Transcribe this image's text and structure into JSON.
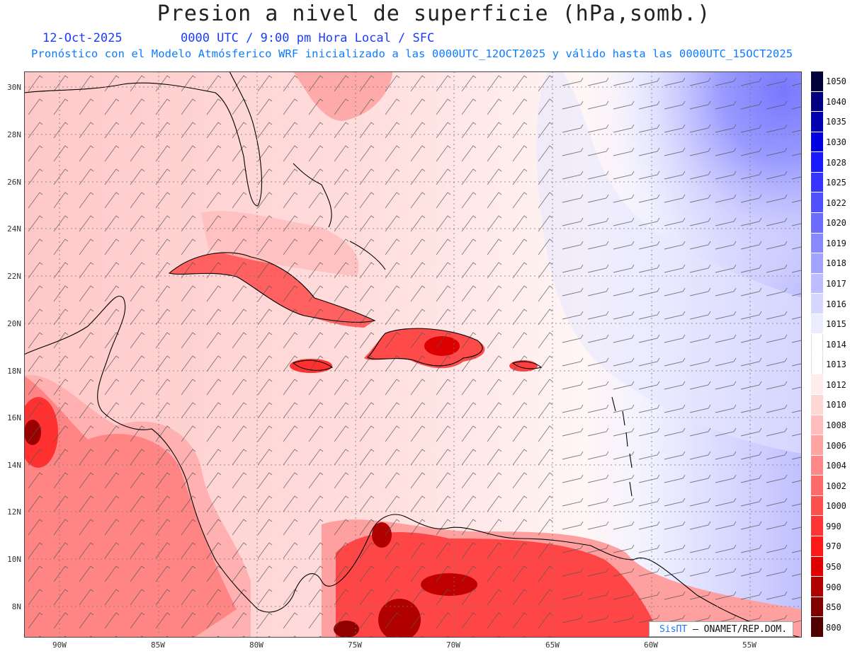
{
  "title": "Presion a nivel de superficie (hPa,somb.)",
  "date": "12-Oct-2025",
  "time_line": "0000 UTC / 9:00 pm Hora Local / SFC",
  "forecast_line": "Pronóstico con el Modelo Atmósferico WRF inicializado a las 0000UTC_12OCT2025 y válido hasta las  0000UTC_15OCT2025",
  "lat_labels": [
    "30N",
    "28N",
    "26N",
    "24N",
    "22N",
    "20N",
    "18N",
    "16N",
    "14N",
    "12N",
    "10N",
    "8N"
  ],
  "lon_labels": [
    "90W",
    "85W",
    "80W",
    "75W",
    "70W",
    "65W",
    "60W",
    "55W"
  ],
  "colorbar": {
    "levels": [
      "1050",
      "1040",
      "1035",
      "1030",
      "1028",
      "1025",
      "1022",
      "1020",
      "1019",
      "1018",
      "1017",
      "1016",
      "1015",
      "1014",
      "1013",
      "1012",
      "1010",
      "1008",
      "1006",
      "1004",
      "1002",
      "1000",
      "990",
      "970",
      "950",
      "900",
      "850",
      "800"
    ],
    "colors": [
      "#00003a",
      "#000080",
      "#0000b0",
      "#0000e0",
      "#1a1aff",
      "#3535ff",
      "#5050ff",
      "#6b6bff",
      "#8888ff",
      "#a3a3ff",
      "#bdbdff",
      "#d6d6ff",
      "#ececff",
      "#ffffff",
      "#ffffff",
      "#ffecec",
      "#ffd6d6",
      "#ffbdbd",
      "#ffa3a3",
      "#ff8888",
      "#ff6b6b",
      "#ff5050",
      "#ff3535",
      "#ff1a1a",
      "#e00000",
      "#b00000",
      "#800000",
      "#500000"
    ]
  },
  "credit": {
    "brand": "SisПТ",
    "text": "– ONAMET/REP.DOM."
  }
}
